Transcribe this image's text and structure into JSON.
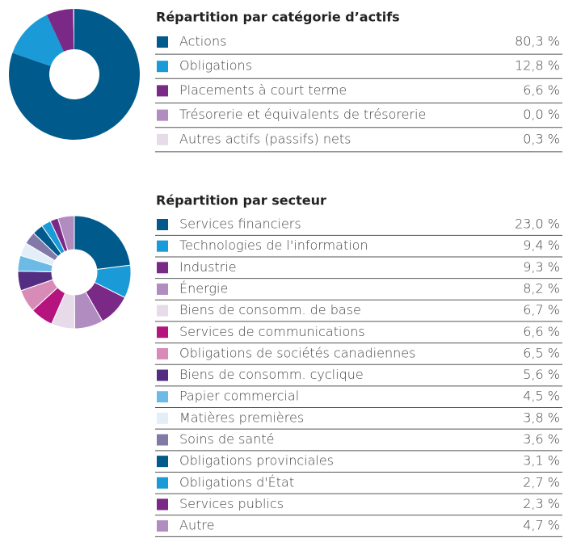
{
  "chart_data": [
    {
      "type": "pie",
      "title": "Répartition par catégorie d’actifs",
      "categories": [
        "Actions",
        "Obligations",
        "Placements à court terme",
        "Trésorerie et équivalents de trésorerie",
        "Autres actifs (passifs) nets"
      ],
      "values": [
        80.3,
        12.8,
        6.6,
        0.0,
        0.3
      ],
      "value_labels": [
        "80,3 %",
        "12,8 %",
        "6,6 %",
        "0,0 %",
        "0,3 %"
      ],
      "colors": [
        "#005a8c",
        "#1a9ad7",
        "#7a2a86",
        "#b18cc0",
        "#e7dbea"
      ]
    },
    {
      "type": "pie",
      "title": "Répartition par secteur",
      "categories": [
        "Services financiers",
        "Technologies de l'information",
        "Industrie",
        "Énergie",
        "Biens de consomm. de base",
        "Services de communications",
        "Obligations de sociétés canadiennes",
        "Biens de consomm. cyclique",
        "Papier commercial",
        "Matières premières",
        "Soins de santé",
        "Obligations provinciales",
        "Obligations d'État",
        "Services publics",
        "Autre"
      ],
      "values": [
        23.0,
        9.4,
        9.3,
        8.2,
        6.7,
        6.6,
        6.5,
        5.6,
        4.5,
        3.8,
        3.6,
        3.1,
        2.7,
        2.3,
        4.7
      ],
      "value_labels": [
        "23,0 %",
        "9,4 %",
        "9,3 %",
        "8,2 %",
        "6,7 %",
        "6,6 %",
        "6,5 %",
        "5,6 %",
        "4,5 %",
        "3,8 %",
        "3,6 %",
        "3,1 %",
        "2,7 %",
        "2,3 %",
        "4,7 %"
      ],
      "colors": [
        "#005a8c",
        "#1a9ad7",
        "#7a2a86",
        "#b18cc0",
        "#e7dbea",
        "#b5147f",
        "#d98bb7",
        "#532d82",
        "#6cbbe7",
        "#e4eef8",
        "#8279a9",
        "#005a8c",
        "#1a9ad7",
        "#7a2a86",
        "#b18cc0"
      ]
    }
  ]
}
